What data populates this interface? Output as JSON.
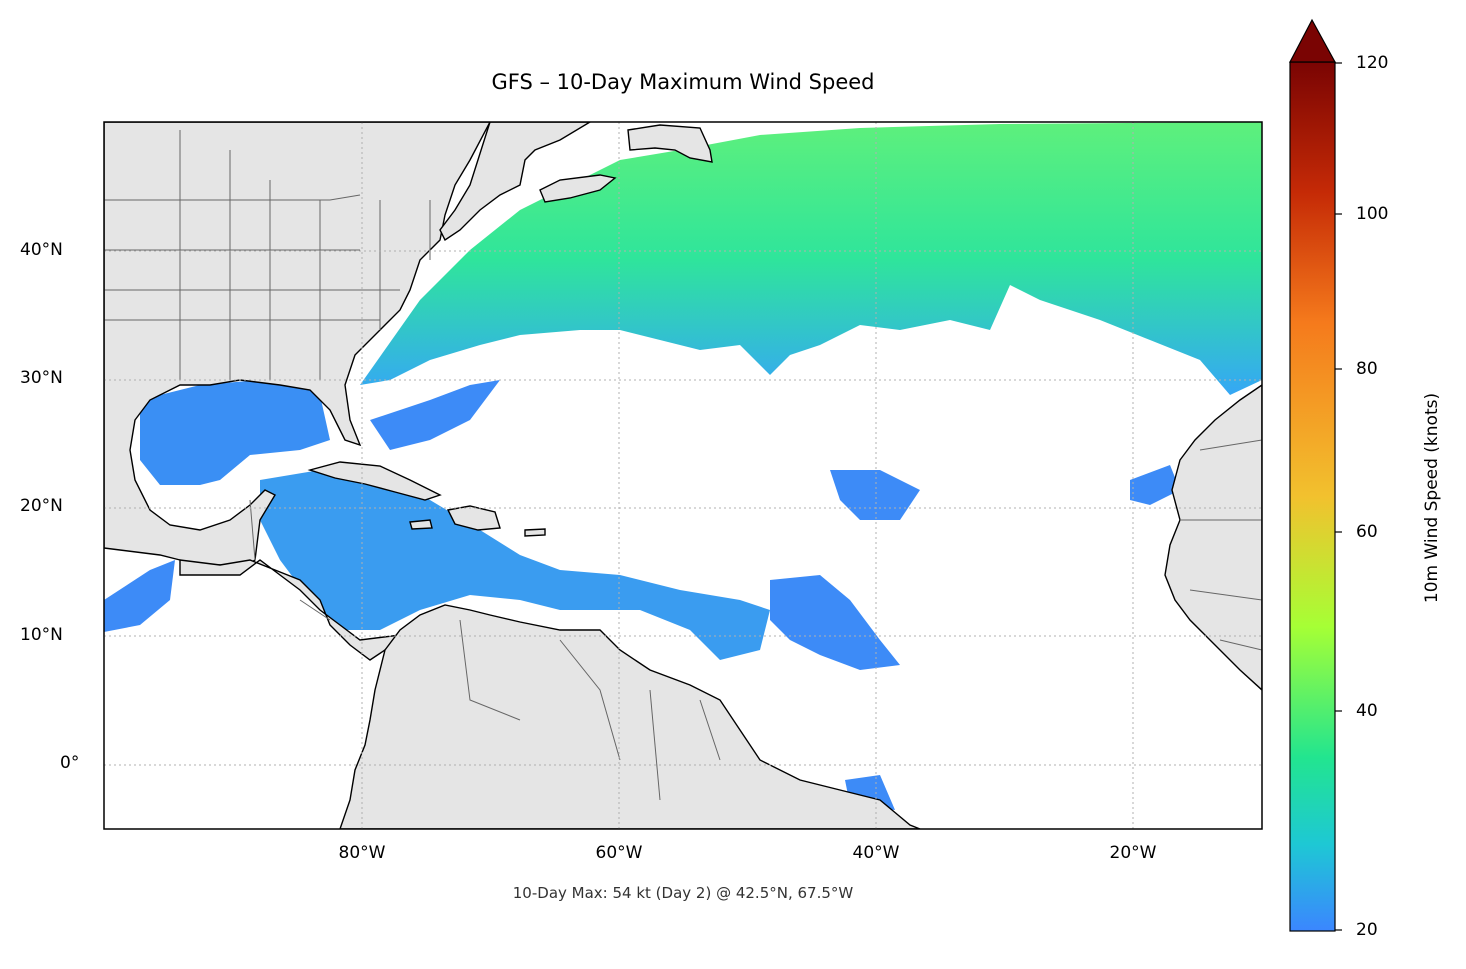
{
  "title": "GFS – 10-Day Maximum Wind Speed",
  "footnote": "10-Day Max: 54 kt (Day 2) @ 42.5°N, 67.5°W",
  "map": {
    "lat_ticks": [
      "40°N",
      "30°N",
      "20°N",
      "10°N",
      "0°"
    ],
    "lon_ticks": [
      "80°W",
      "60°W",
      "40°W",
      "20°W"
    ],
    "land_color": "#e5e5e5",
    "ocean_color": "#ffffff"
  },
  "colorbar": {
    "label": "10m Wind Speed (knots)",
    "ticks": [
      "120",
      "100",
      "80",
      "60",
      "40",
      "20"
    ],
    "range": [
      20,
      120
    ],
    "extend": "max",
    "colors": [
      "#3b86ff",
      "#1ec8d4",
      "#22e58f",
      "#a6ff35",
      "#f2c12e",
      "#f57a1c",
      "#c52a06",
      "#7a0403"
    ]
  }
}
